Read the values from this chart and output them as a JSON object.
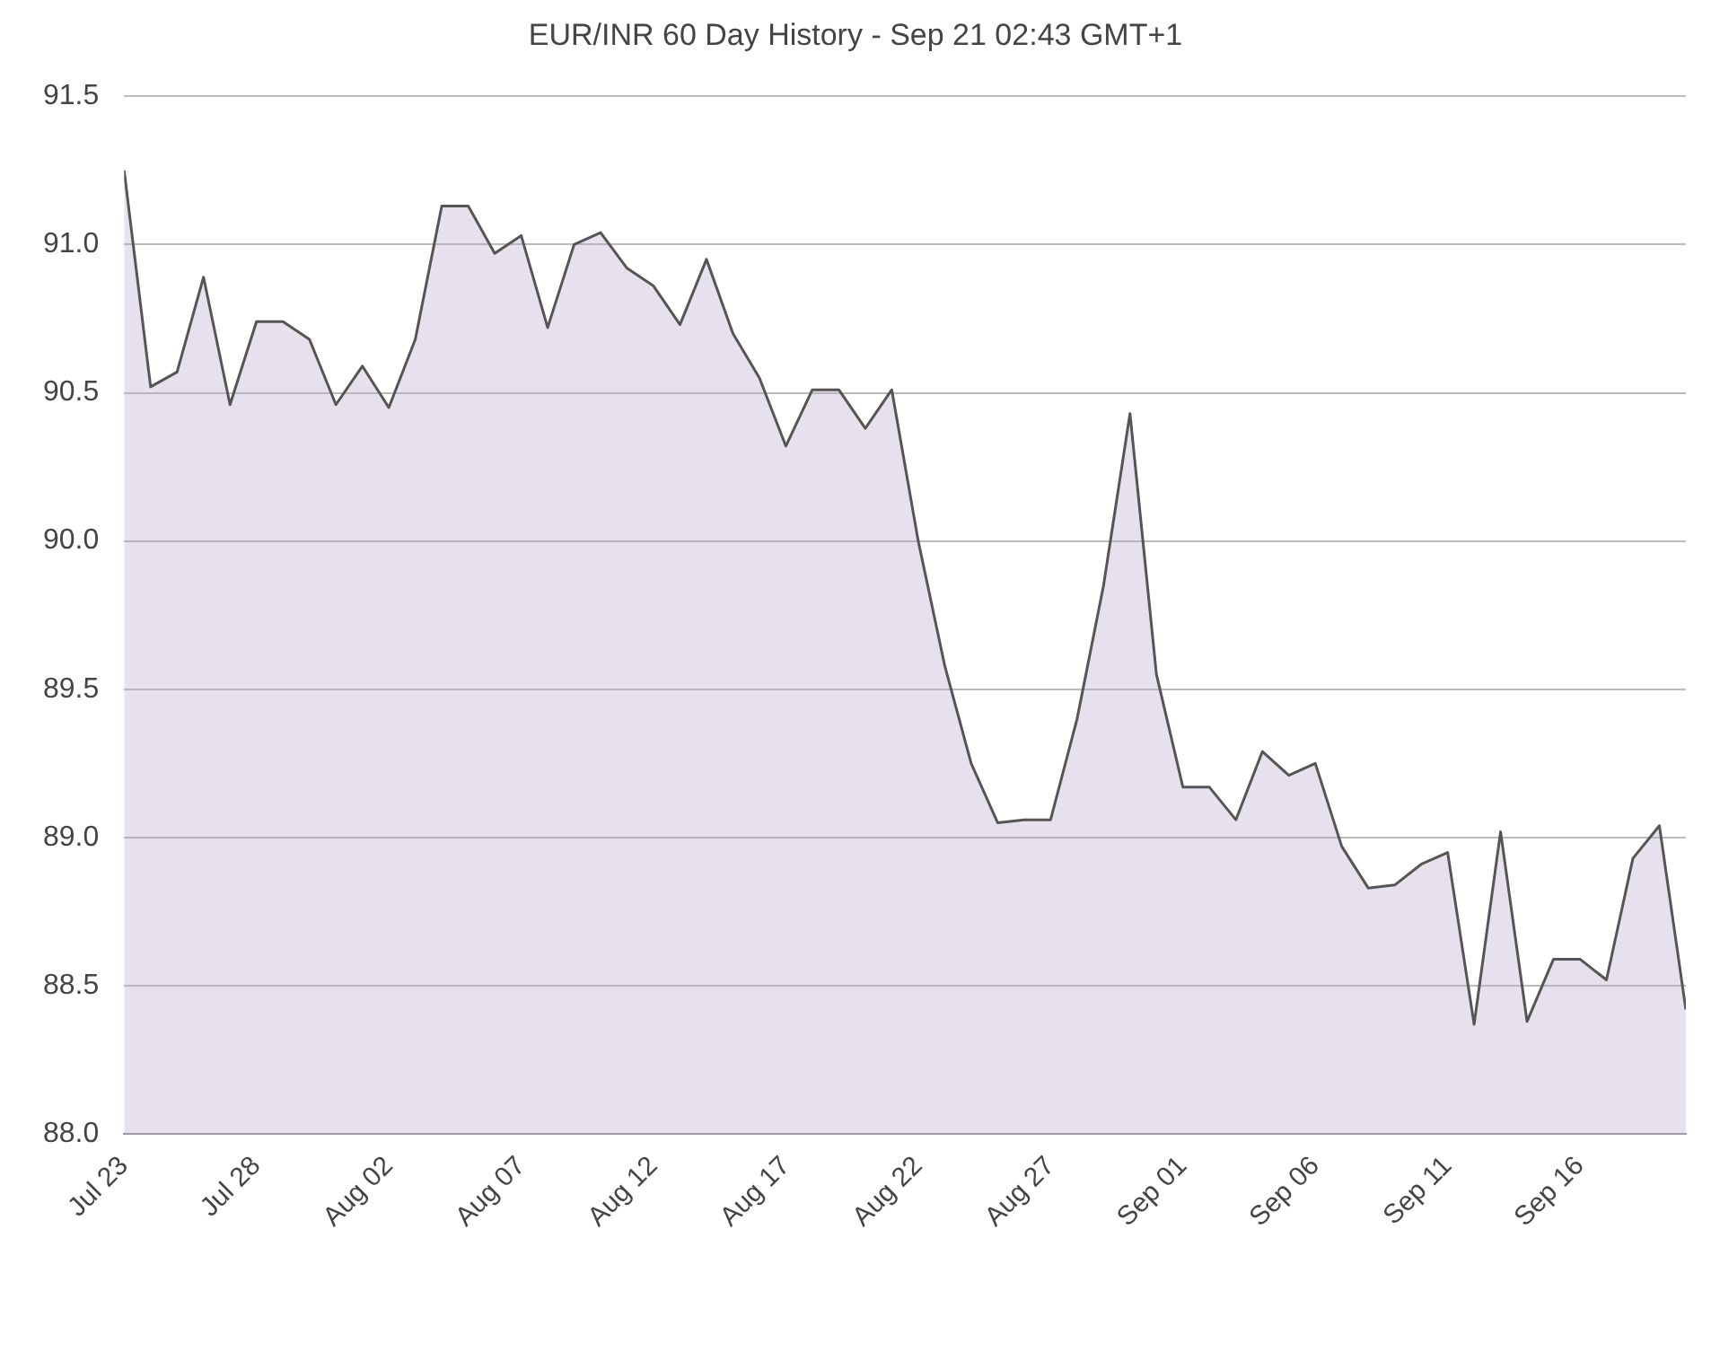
{
  "chart_data": {
    "type": "area",
    "title": "EUR/INR 60 Day History - Sep 21 02:43 GMT+1",
    "x": [
      "--07-23",
      "--07-24",
      "--07-25",
      "--07-26",
      "--07-27",
      "--07-28",
      "--07-29",
      "--07-30",
      "--07-31",
      "--08-01",
      "--08-02",
      "--08-03",
      "--08-04",
      "--08-05",
      "--08-06",
      "--08-07",
      "--08-08",
      "--08-09",
      "--08-10",
      "--08-11",
      "--08-12",
      "--08-13",
      "--08-14",
      "--08-15",
      "--08-16",
      "--08-17",
      "--08-18",
      "--08-19",
      "--08-20",
      "--08-21",
      "--08-22",
      "--08-23",
      "--08-24",
      "--08-25",
      "--08-26",
      "--08-27",
      "--08-28",
      "--08-29",
      "--08-30",
      "--08-31",
      "--09-01",
      "--09-02",
      "--09-03",
      "--09-04",
      "--09-05",
      "--09-06",
      "--09-07",
      "--09-08",
      "--09-09",
      "--09-10",
      "--09-11",
      "--09-12",
      "--09-13",
      "--09-14",
      "--09-15",
      "--09-16",
      "--09-17",
      "--09-18",
      "--09-19",
      "--09-20"
    ],
    "series": [
      {
        "color": "#555555",
        "values": [
          91.25,
          90.52,
          90.57,
          90.89,
          90.46,
          90.74,
          90.74,
          90.68,
          90.46,
          90.59,
          90.45,
          90.68,
          91.13,
          91.13,
          90.97,
          91.03,
          90.72,
          91.0,
          91.04,
          90.92,
          90.86,
          90.73,
          90.95,
          90.7,
          90.55,
          90.32,
          90.51,
          90.51,
          90.38,
          90.51,
          90.0,
          89.58,
          89.25,
          89.05,
          89.06,
          89.06,
          89.4,
          89.85,
          90.43,
          89.55,
          89.17,
          89.17,
          89.06,
          89.29,
          89.21,
          89.25,
          88.97,
          88.83,
          88.84,
          88.91,
          88.95,
          88.37,
          89.02,
          88.38,
          88.59,
          88.59,
          88.52,
          88.93,
          89.04,
          88.42
        ]
      }
    ],
    "xlim": [
      "--07-23",
      "--09-20"
    ],
    "xticks": [
      {
        "value": "--07-23",
        "label": "Jul 23"
      },
      {
        "value": "--07-28",
        "label": "Jul 28"
      },
      {
        "value": "--08-02",
        "label": "Aug 02"
      },
      {
        "value": "--08-07",
        "label": "Aug 07"
      },
      {
        "value": "--08-12",
        "label": "Aug 12"
      },
      {
        "value": "--08-17",
        "label": "Aug 17"
      },
      {
        "value": "--08-22",
        "label": "Aug 22"
      },
      {
        "value": "--08-27",
        "label": "Aug 27"
      },
      {
        "value": "--09-01",
        "label": "Sep 01"
      },
      {
        "value": "--09-06",
        "label": "Sep 06"
      },
      {
        "value": "--09-11",
        "label": "Sep 11"
      },
      {
        "value": "--09-16",
        "label": "Sep 16"
      }
    ],
    "ylim": [
      88.0,
      91.5
    ],
    "yticks": [
      {
        "value": 88,
        "label": "88.0"
      },
      {
        "value": 88.5,
        "label": "88.5"
      },
      {
        "value": 89,
        "label": "89.0"
      },
      {
        "value": 89.5,
        "label": "89.5"
      },
      {
        "value": 90,
        "label": "90.0"
      },
      {
        "value": 90.5,
        "label": "90.5"
      },
      {
        "value": 91,
        "label": "91.0"
      },
      {
        "value": 91.5,
        "label": "91.5"
      }
    ],
    "grid": "y",
    "legend": false,
    "marker": "none",
    "line_style": "solid"
  }
}
